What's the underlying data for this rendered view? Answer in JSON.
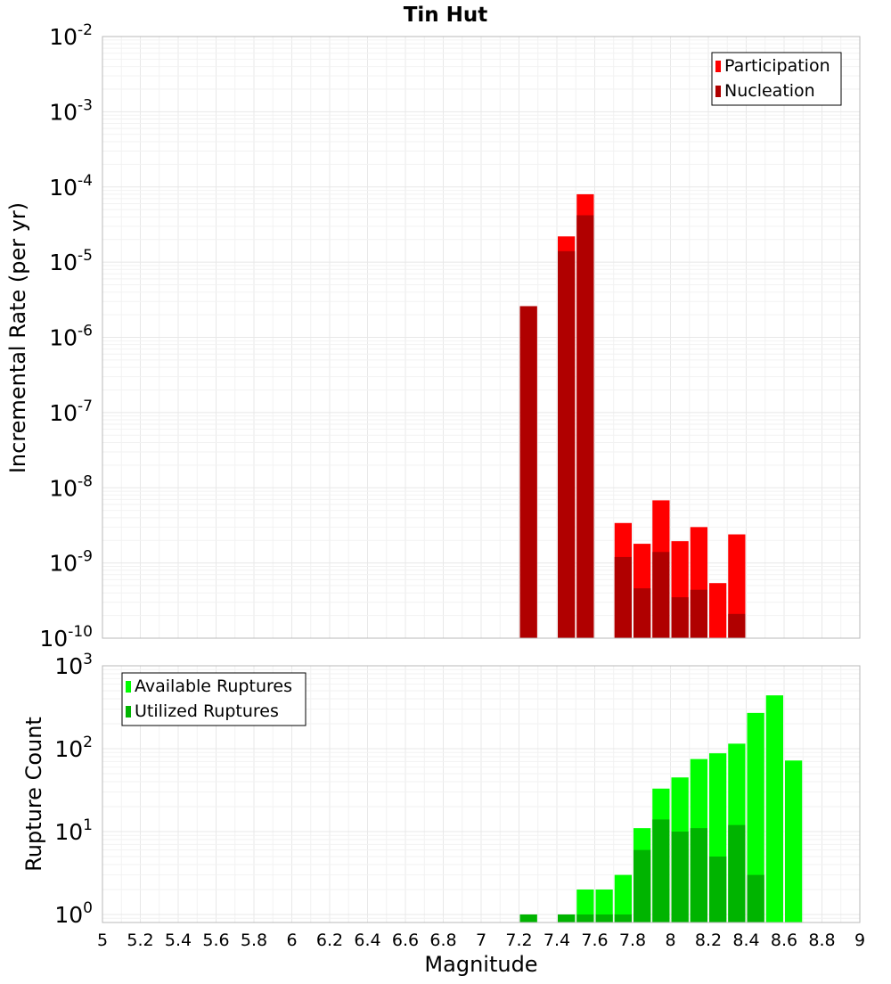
{
  "chart_data": {
    "title": "Tin Hut",
    "xlabel": "Magnitude",
    "xlim": [
      5,
      9
    ],
    "x_tick_labels": [
      "5",
      "5.2",
      "5.4",
      "5.6",
      "5.8",
      "6",
      "6.2",
      "6.4",
      "6.6",
      "6.8",
      "7",
      "7.2",
      "7.4",
      "7.6",
      "7.8",
      "8",
      "8.2",
      "8.4",
      "8.6",
      "8.8",
      "9"
    ],
    "bin_width": 0.1,
    "grid": true,
    "panels": [
      {
        "type": "bar",
        "yscale": "log",
        "ylabel": "Incremental Rate (per yr)",
        "ylim": [
          1e-10,
          0.01
        ],
        "y_tick_exponents": [
          -10,
          -9,
          -8,
          -7,
          -6,
          -5,
          -4,
          -3,
          -2
        ],
        "legend_position": "top-right",
        "series": [
          {
            "name": "Participation",
            "color": "#ff0000",
            "x": [
              7.25,
              7.45,
              7.55,
              7.75,
              7.85,
              7.95,
              8.05,
              8.15,
              8.25,
              8.35
            ],
            "values": [
              2.6e-06,
              2.2e-05,
              8e-05,
              3.4e-09,
              1.8e-09,
              6.8e-09,
              1.95e-09,
              3e-09,
              5.4e-10,
              2.4e-09
            ]
          },
          {
            "name": "Nucleation",
            "color": "#b00000",
            "x": [
              7.25,
              7.45,
              7.55,
              7.75,
              7.85,
              7.95,
              8.05,
              8.15,
              8.35
            ],
            "values": [
              2.6e-06,
              1.4e-05,
              4.2e-05,
              1.2e-09,
              4.6e-10,
              1.4e-09,
              3.5e-10,
              4.4e-10,
              2.1e-10
            ]
          }
        ]
      },
      {
        "type": "bar",
        "yscale": "log",
        "ylabel": "Rupture Count",
        "ylim": [
          0.8,
          1000
        ],
        "y_tick_exponents": [
          0,
          1,
          2,
          3
        ],
        "legend_position": "top-left",
        "series": [
          {
            "name": "Available Ruptures",
            "color": "#00ff00",
            "x": [
              7.25,
              7.45,
              7.55,
              7.65,
              7.75,
              7.85,
              7.95,
              8.05,
              8.15,
              8.25,
              8.35,
              8.45,
              8.55,
              8.65
            ],
            "values": [
              1,
              1,
              2,
              2,
              3,
              11,
              33,
              45,
              75,
              88,
              115,
              270,
              440,
              72
            ]
          },
          {
            "name": "Utilized Ruptures",
            "color": "#00b400",
            "x": [
              7.25,
              7.45,
              7.55,
              7.65,
              7.75,
              7.85,
              7.95,
              8.05,
              8.15,
              8.25,
              8.35,
              8.45
            ],
            "values": [
              1,
              1,
              1,
              1,
              1,
              6,
              14,
              10,
              11,
              5,
              12,
              3
            ]
          }
        ]
      }
    ]
  }
}
